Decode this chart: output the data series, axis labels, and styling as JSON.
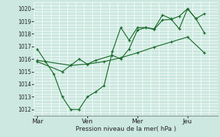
{
  "xlabel": "Pression niveau de la mer( hPa )",
  "bg_color": "#cce8e0",
  "grid_color": "#ffffff",
  "line_color": "#1a6b2a",
  "ylim": [
    1011.5,
    1020.5
  ],
  "xlim": [
    -0.2,
    10.8
  ],
  "xtick_labels": [
    "Mar",
    "Ven",
    "Mer",
    "Jeu"
  ],
  "xtick_positions": [
    0,
    3,
    6,
    9
  ],
  "ytick_values": [
    1012,
    1013,
    1014,
    1015,
    1016,
    1017,
    1018,
    1019,
    1020
  ],
  "series1_x": [
    0,
    0.5,
    1.0,
    1.5,
    2.0,
    2.5,
    3.0,
    3.5,
    4.0,
    4.5,
    5.0,
    5.5,
    6.0,
    6.5,
    7.0,
    7.5,
    8.0,
    8.5,
    9.0,
    9.5,
    10.0
  ],
  "series1_y": [
    1016.8,
    1015.8,
    1014.8,
    1013.0,
    1012.0,
    1012.0,
    1013.0,
    1013.4,
    1013.9,
    1016.6,
    1018.5,
    1017.5,
    1018.5,
    1018.5,
    1018.4,
    1019.5,
    1019.2,
    1018.4,
    1020.0,
    1019.2,
    1018.1
  ],
  "series2_x": [
    0,
    1.5,
    2.0,
    2.5,
    3.0,
    3.5,
    4.5,
    5.0,
    5.5,
    6.0,
    6.5,
    7.0,
    7.5,
    8.0,
    8.5,
    9.0,
    9.5,
    10.0
  ],
  "series2_y": [
    1015.8,
    1015.0,
    1015.5,
    1016.0,
    1015.6,
    1015.9,
    1016.3,
    1016.0,
    1016.8,
    1018.3,
    1018.5,
    1018.35,
    1019.1,
    1019.15,
    1019.4,
    1020.0,
    1019.2,
    1019.6
  ],
  "series3_x": [
    0,
    2,
    3,
    4,
    5,
    6,
    7,
    8,
    9,
    10
  ],
  "series3_y": [
    1015.9,
    1015.5,
    1015.6,
    1015.8,
    1016.1,
    1016.5,
    1016.95,
    1017.35,
    1017.75,
    1016.5
  ],
  "vlines_x": [
    0,
    3,
    6,
    9
  ],
  "total_x": 10.5
}
